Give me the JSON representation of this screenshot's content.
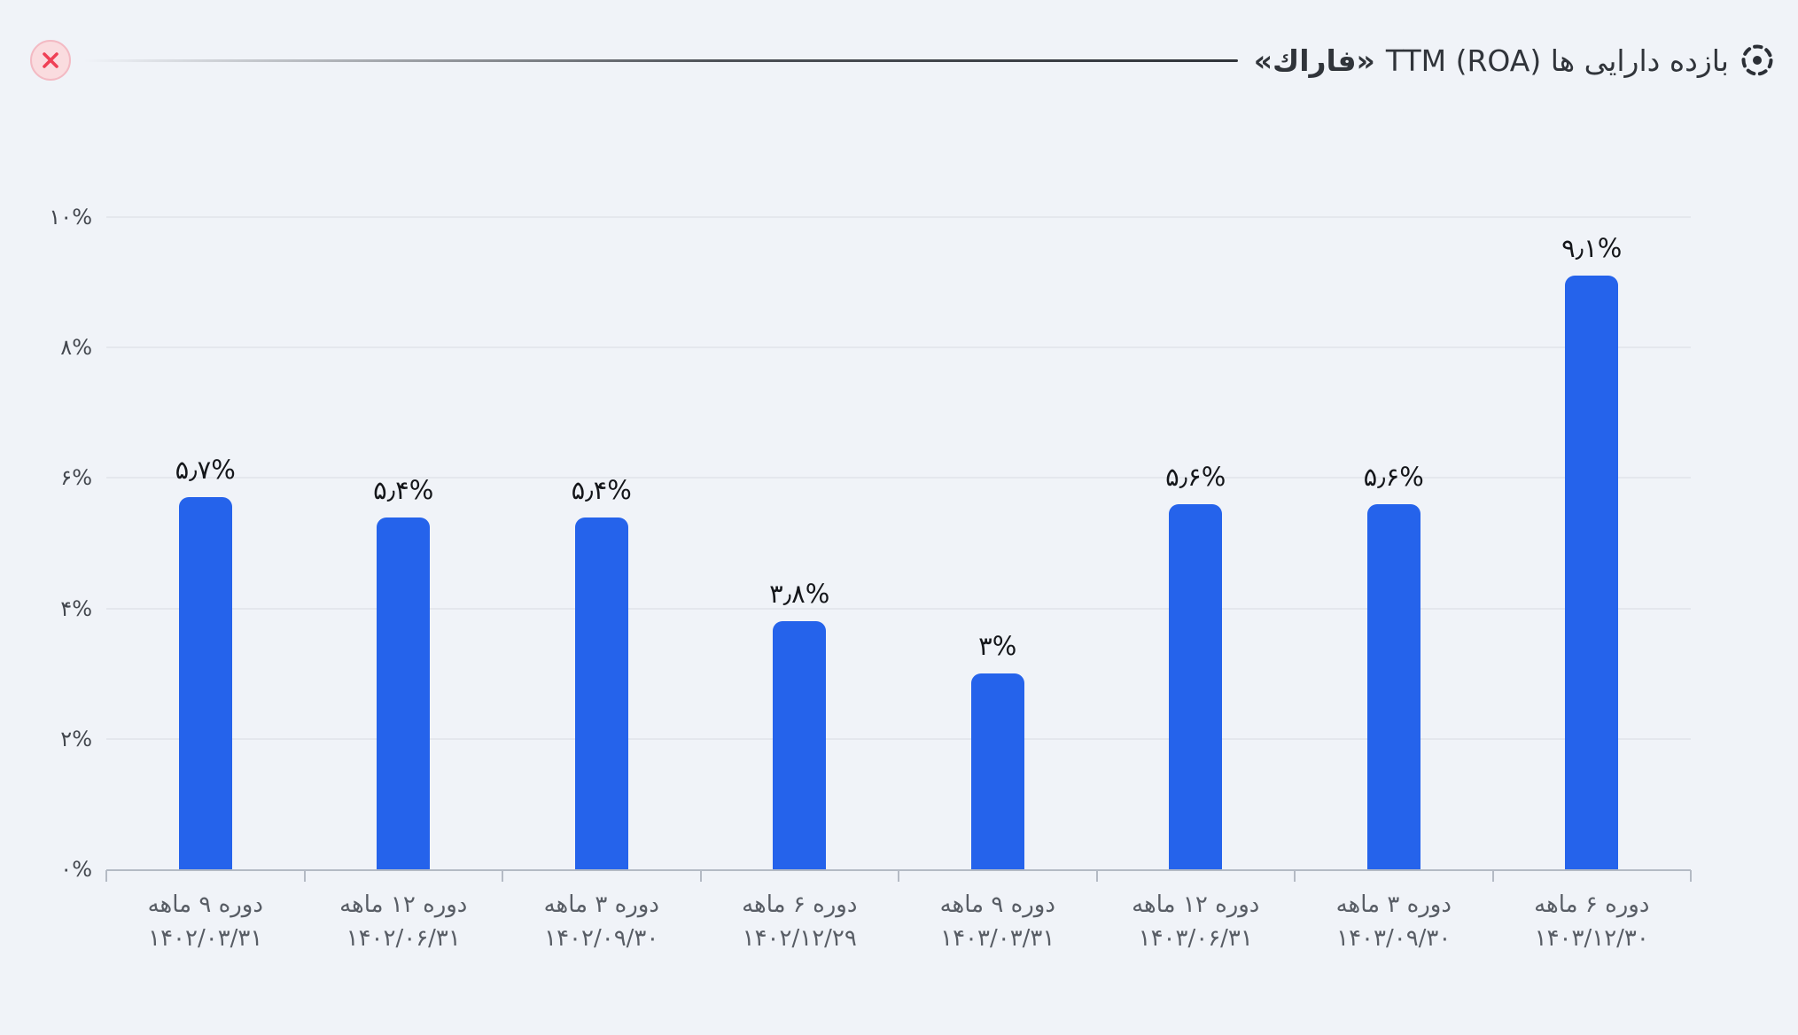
{
  "header": {
    "title_main": "بازده دارایی ها TTM (ROA)",
    "title_symbol": "«فاراك»",
    "close_icon": "x-icon",
    "title_icon": "dashed-circle-dot-icon"
  },
  "colors": {
    "background": "#f0f3f8",
    "bar": "#2563eb",
    "gridline": "#e4e7ed",
    "axis": "#b4bac4",
    "title_text": "#30343a",
    "value_text": "#14161a",
    "xlabel_text": "#585d65",
    "close_bg": "#fadcdf",
    "close_border": "#f3bac3",
    "close_x": "#ef4055"
  },
  "chart_data": {
    "type": "bar",
    "title": "بازده دارایی ها TTM (ROA) «فاراك»",
    "xlabel": "",
    "ylabel": "",
    "ylim": [
      0,
      10
    ],
    "grid": true,
    "legend": false,
    "bar_color": "#2563eb",
    "categories": [
      {
        "period": "دوره ۹ ماهه",
        "date": "۱۴۰۲/۰۳/۳۱"
      },
      {
        "period": "دوره ۱۲ ماهه",
        "date": "۱۴۰۲/۰۶/۳۱"
      },
      {
        "period": "دوره ۳ ماهه",
        "date": "۱۴۰۲/۰۹/۳۰"
      },
      {
        "period": "دوره ۶ ماهه",
        "date": "۱۴۰۲/۱۲/۲۹"
      },
      {
        "period": "دوره ۹ ماهه",
        "date": "۱۴۰۳/۰۳/۳۱"
      },
      {
        "period": "دوره ۱۲ ماهه",
        "date": "۱۴۰۳/۰۶/۳۱"
      },
      {
        "period": "دوره ۳ ماهه",
        "date": "۱۴۰۳/۰۹/۳۰"
      },
      {
        "period": "دوره ۶ ماهه",
        "date": "۱۴۰۳/۱۲/۳۰"
      }
    ],
    "values": [
      5.7,
      5.4,
      5.4,
      3.8,
      3.0,
      5.6,
      5.6,
      9.1
    ],
    "value_labels": [
      "۵٫۷%",
      "۵٫۴%",
      "۵٫۴%",
      "۳٫۸%",
      "۳%",
      "۵٫۶%",
      "۵٫۶%",
      "۹٫۱%"
    ],
    "yticks": [
      {
        "value": 0,
        "label": "۰%"
      },
      {
        "value": 2,
        "label": "۲%"
      },
      {
        "value": 4,
        "label": "۴%"
      },
      {
        "value": 6,
        "label": "۶%"
      },
      {
        "value": 8,
        "label": "۸%"
      },
      {
        "value": 10,
        "label": "۱۰%"
      }
    ]
  }
}
